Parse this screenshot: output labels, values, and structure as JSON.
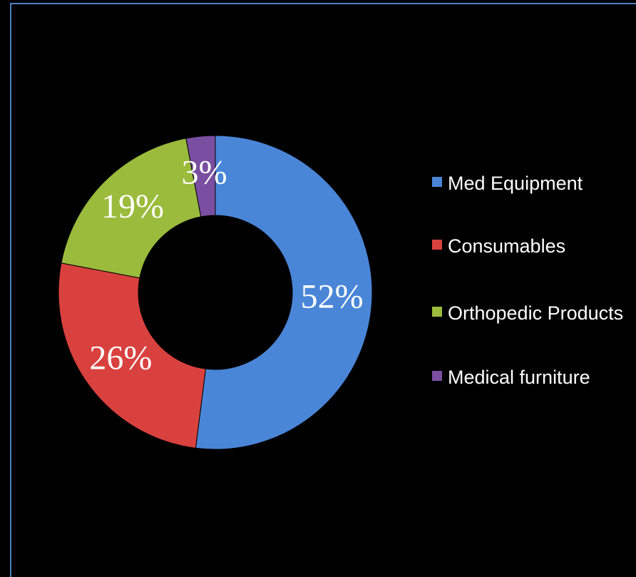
{
  "chart_data": {
    "type": "donut",
    "categories": [
      "Med Equipment",
      "Consumables",
      "Orthopedic Products",
      "Medical furniture"
    ],
    "values": [
      52,
      26,
      19,
      3
    ],
    "value_labels": [
      "52%",
      "26%",
      "19%",
      "3%"
    ],
    "colors": [
      "#4a86d8",
      "#d9413e",
      "#9bbb3c",
      "#7a4ea0"
    ],
    "legend": "right"
  }
}
